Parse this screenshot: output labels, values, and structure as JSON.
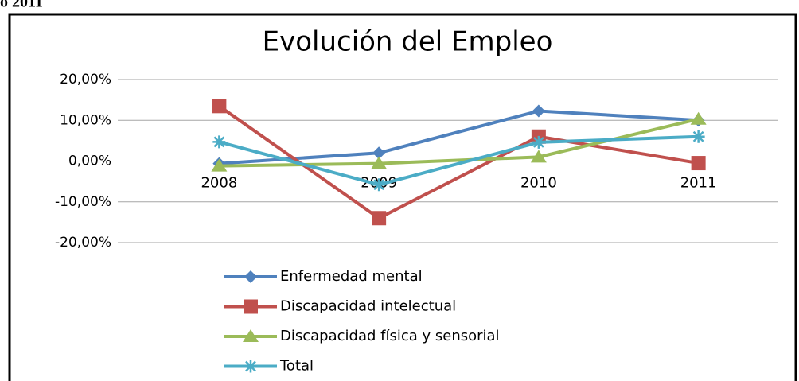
{
  "page_header": "o 2011",
  "chart_data": {
    "type": "line",
    "title": "Evolución del Empleo",
    "categories": [
      "2008",
      "2009",
      "2010",
      "2011"
    ],
    "series": [
      {
        "name": "Enfermedad mental",
        "color": "#4f81bd",
        "marker": "diamond",
        "values": [
          -0.6,
          2.0,
          12.3,
          10.0
        ]
      },
      {
        "name": "Discapacidad intelectual",
        "color": "#c0504d",
        "marker": "square",
        "values": [
          13.5,
          -14.0,
          6.0,
          -0.5
        ]
      },
      {
        "name": "Discapacidad física y sensorial",
        "color": "#9bbb59",
        "marker": "triangle",
        "values": [
          -1.2,
          -0.6,
          1.0,
          10.3
        ]
      },
      {
        "name": "Total",
        "color": "#4bacc6",
        "marker": "star",
        "values": [
          4.7,
          -5.8,
          4.6,
          6.0
        ]
      }
    ],
    "ylim": [
      -20,
      20
    ],
    "yticks": [
      {
        "value": -20,
        "label": "-20,00%"
      },
      {
        "value": -10,
        "label": "-10,00%"
      },
      {
        "value": 0,
        "label": "0,00%"
      },
      {
        "value": 10,
        "label": "10,00%"
      },
      {
        "value": 20,
        "label": "20,00%"
      }
    ],
    "grid": true,
    "legend": "bottom"
  }
}
